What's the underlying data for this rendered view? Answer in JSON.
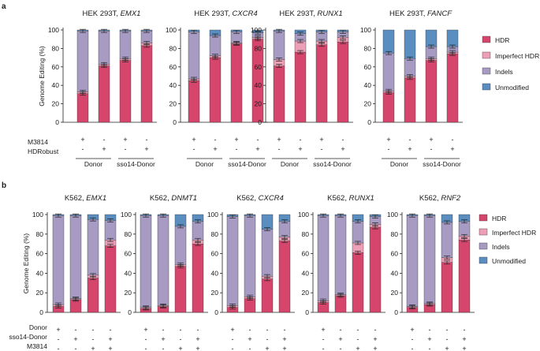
{
  "colors": {
    "hdr": "#d6456b",
    "imperfect_hdr": "#ee9fb8",
    "indels": "#a79bc4",
    "unmodified": "#5a8ec0"
  },
  "panels": [
    {
      "label": "a",
      "ylabel": "Genome Editing (%)",
      "legend": [
        "HDR",
        "Imperfect HDR",
        "Indels",
        "Unmodified"
      ],
      "conditions": [
        {
          "label": "M3814",
          "signs": [
            "+",
            "-",
            "+",
            "-"
          ]
        },
        {
          "label": "HDRobust",
          "signs": [
            "-",
            "+",
            "-",
            "+"
          ]
        }
      ],
      "groups": [
        {
          "label": "Donor",
          "bars": [
            0,
            1
          ]
        },
        {
          "label": "sso14-Donor",
          "bars": [
            2,
            3
          ]
        }
      ]
    },
    {
      "label": "b",
      "ylabel": "Genome Editing (%)",
      "legend": [
        "HDR",
        "Imperfect HDR",
        "Indels",
        "Unmodified"
      ],
      "conditions": [
        {
          "label": "Donor",
          "signs": [
            "+",
            "-",
            "-",
            "-"
          ]
        },
        {
          "label": "sso14-Donor",
          "signs": [
            "-",
            "+",
            "-",
            "+"
          ]
        },
        {
          "label": "M3814",
          "signs": [
            "-",
            "-",
            "+",
            "+"
          ]
        }
      ]
    }
  ],
  "chart_data": [
    {
      "type": "bar",
      "stacked": true,
      "panel": "a",
      "title_prefix": "HEK 293T,",
      "title_gene": "EMX1",
      "ylabel": "Genome Editing (%)",
      "ylim": [
        0,
        100
      ],
      "yticks": [
        0,
        20,
        40,
        60,
        80,
        100
      ],
      "series": [
        {
          "name": "HDR",
          "values": [
            31,
            61,
            67,
            83
          ]
        },
        {
          "name": "Imperfect HDR",
          "values": [
            2,
            2,
            2,
            3
          ]
        },
        {
          "name": "Indels",
          "values": [
            66,
            36,
            30,
            13
          ]
        },
        {
          "name": "Unmodified",
          "values": [
            1,
            1,
            1,
            1
          ]
        }
      ]
    },
    {
      "type": "bar",
      "stacked": true,
      "panel": "a",
      "title_prefix": "HEK 293T,",
      "title_gene": "CXCR4",
      "ylabel": "",
      "ylim": [
        0,
        100
      ],
      "yticks": [
        0,
        20,
        40,
        60,
        80,
        100
      ],
      "series": [
        {
          "name": "HDR",
          "values": [
            45,
            70,
            85,
            90
          ]
        },
        {
          "name": "Imperfect HDR",
          "values": [
            2,
            2,
            1,
            2
          ]
        },
        {
          "name": "Indels",
          "values": [
            51,
            22,
            12,
            5
          ]
        },
        {
          "name": "Unmodified",
          "values": [
            2,
            6,
            2,
            3
          ]
        }
      ]
    },
    {
      "type": "bar",
      "stacked": true,
      "panel": "a",
      "title_prefix": "HEK 293T,",
      "title_gene": "RUNX1",
      "ylabel": "",
      "ylim": [
        0,
        100
      ],
      "yticks": [
        0,
        20,
        40,
        60,
        80,
        100
      ],
      "series": [
        {
          "name": "HDR",
          "values": [
            61,
            76,
            84,
            87
          ]
        },
        {
          "name": "Imperfect HDR",
          "values": [
            7,
            12,
            4,
            5
          ]
        },
        {
          "name": "Indels",
          "values": [
            31,
            8,
            10,
            6
          ]
        },
        {
          "name": "Unmodified",
          "values": [
            1,
            4,
            2,
            2
          ]
        }
      ]
    },
    {
      "type": "bar",
      "stacked": true,
      "panel": "a",
      "title_prefix": "HEK 293T,",
      "title_gene": "FANCF",
      "ylabel": "",
      "ylim": [
        0,
        100
      ],
      "yticks": [
        0,
        20,
        40,
        60,
        80,
        100
      ],
      "series": [
        {
          "name": "HDR",
          "values": [
            32,
            48,
            67,
            74
          ]
        },
        {
          "name": "Imperfect HDR",
          "values": [
            2,
            2,
            2,
            2
          ]
        },
        {
          "name": "Indels",
          "values": [
            41,
            19,
            13,
            6
          ]
        },
        {
          "name": "Unmodified",
          "values": [
            25,
            31,
            18,
            18
          ]
        }
      ]
    },
    {
      "type": "bar",
      "stacked": true,
      "panel": "b",
      "title_prefix": "K562,",
      "title_gene": "EMX1",
      "ylabel": "Genome Editing (%)",
      "ylim": [
        0,
        100
      ],
      "yticks": [
        0,
        20,
        40,
        60,
        80,
        100
      ],
      "series": [
        {
          "name": "HDR",
          "values": [
            6,
            13,
            35,
            68
          ]
        },
        {
          "name": "Imperfect HDR",
          "values": [
            2,
            1,
            3,
            6
          ]
        },
        {
          "name": "Indels",
          "values": [
            91,
            85,
            57,
            20
          ]
        },
        {
          "name": "Unmodified",
          "values": [
            1,
            1,
            5,
            6
          ]
        }
      ]
    },
    {
      "type": "bar",
      "stacked": true,
      "panel": "b",
      "title_prefix": "K562,",
      "title_gene": "DNMT1",
      "ylabel": "",
      "ylim": [
        0,
        100
      ],
      "yticks": [
        0,
        20,
        40,
        60,
        80,
        100
      ],
      "series": [
        {
          "name": "HDR",
          "values": [
            4,
            6,
            47,
            70
          ]
        },
        {
          "name": "Imperfect HDR",
          "values": [
            1,
            1,
            2,
            4
          ]
        },
        {
          "name": "Indels",
          "values": [
            94,
            92,
            39,
            19
          ]
        },
        {
          "name": "Unmodified",
          "values": [
            1,
            1,
            12,
            7
          ]
        }
      ]
    },
    {
      "type": "bar",
      "stacked": true,
      "panel": "b",
      "title_prefix": "K562,",
      "title_gene": "CXCR4",
      "ylabel": "",
      "ylim": [
        0,
        100
      ],
      "yticks": [
        0,
        20,
        40,
        60,
        80,
        100
      ],
      "series": [
        {
          "name": "HDR",
          "values": [
            5,
            14,
            34,
            73
          ]
        },
        {
          "name": "Imperfect HDR",
          "values": [
            2,
            2,
            3,
            4
          ]
        },
        {
          "name": "Indels",
          "values": [
            91,
            83,
            48,
            16
          ]
        },
        {
          "name": "Unmodified",
          "values": [
            2,
            1,
            15,
            7
          ]
        }
      ]
    },
    {
      "type": "bar",
      "stacked": true,
      "panel": "b",
      "title_prefix": "K562,",
      "title_gene": "RUNX1",
      "ylabel": "",
      "ylim": [
        0,
        100
      ],
      "yticks": [
        0,
        20,
        40,
        60,
        80,
        100
      ],
      "series": [
        {
          "name": "HDR",
          "values": [
            10,
            17,
            61,
            87
          ]
        },
        {
          "name": "Imperfect HDR",
          "values": [
            2,
            1,
            10,
            3
          ]
        },
        {
          "name": "Indels",
          "values": [
            87,
            81,
            22,
            8
          ]
        },
        {
          "name": "Unmodified",
          "values": [
            1,
            1,
            7,
            2
          ]
        }
      ]
    },
    {
      "type": "bar",
      "stacked": true,
      "panel": "b",
      "title_prefix": "K562,",
      "title_gene": "RNF2",
      "ylabel": "",
      "ylim": [
        0,
        100
      ],
      "yticks": [
        0,
        20,
        40,
        60,
        80,
        100
      ],
      "series": [
        {
          "name": "HDR",
          "values": [
            5,
            8,
            51,
            74
          ]
        },
        {
          "name": "Imperfect HDR",
          "values": [
            1,
            1,
            5,
            4
          ]
        },
        {
          "name": "Indels",
          "values": [
            93,
            90,
            36,
            15
          ]
        },
        {
          "name": "Unmodified",
          "values": [
            1,
            1,
            8,
            7
          ]
        }
      ]
    }
  ]
}
